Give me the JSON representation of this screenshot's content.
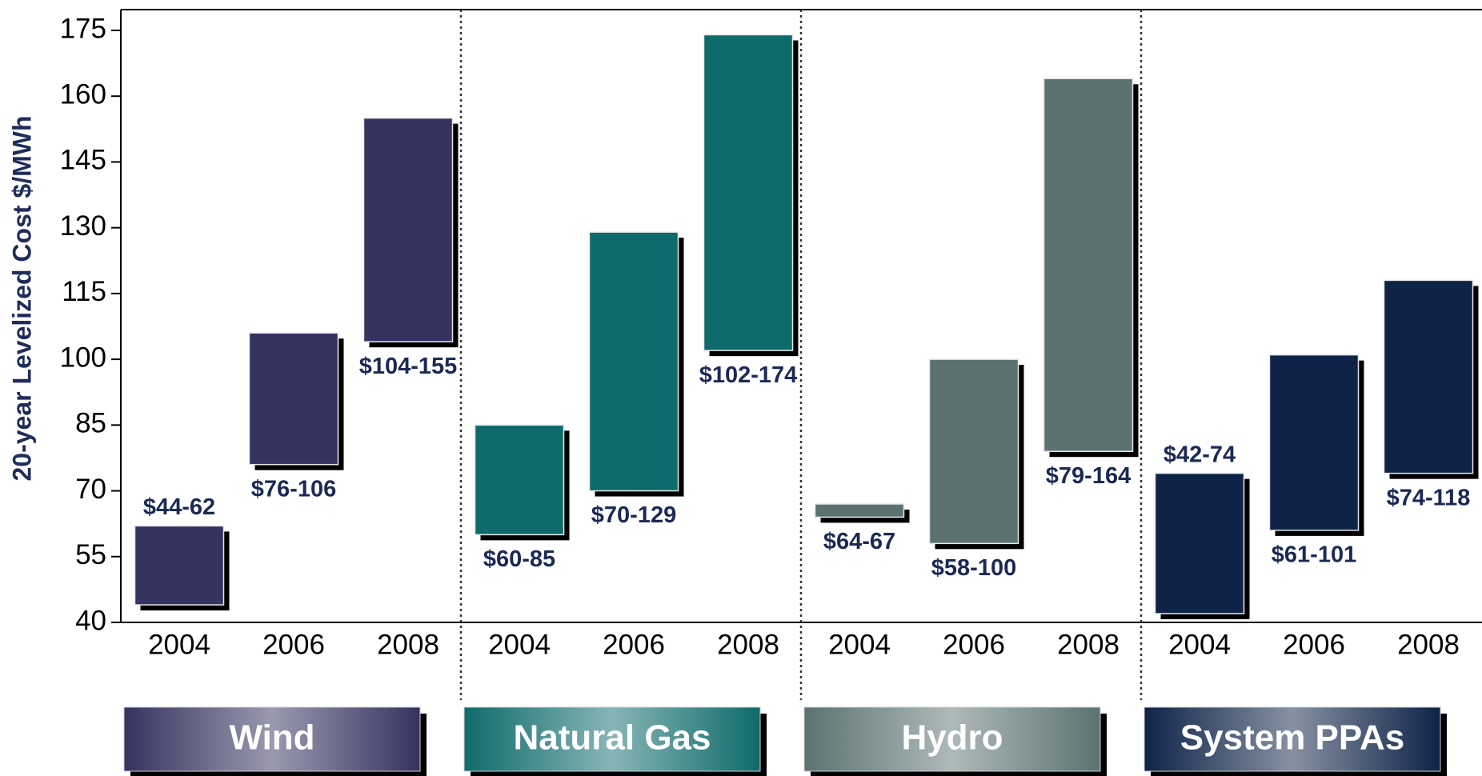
{
  "chart_data": {
    "type": "range_bar",
    "ylabel": "20-year Levelized Cost $/MWh",
    "ylim": [
      40,
      175
    ],
    "yticks": [
      40,
      55,
      70,
      85,
      100,
      115,
      130,
      145,
      160,
      175
    ],
    "groups": [
      {
        "name": "Wind",
        "color": "#35335f",
        "categories": [
          "2004",
          "2006",
          "2008"
        ],
        "low": [
          44,
          76,
          104
        ],
        "high": [
          62,
          106,
          155
        ],
        "value_labels": [
          "$44-62",
          "$76-106",
          "$104-155"
        ]
      },
      {
        "name": "Natural Gas",
        "color": "#0f6b6b",
        "categories": [
          "2004",
          "2006",
          "2008"
        ],
        "low": [
          60,
          70,
          102
        ],
        "high": [
          85,
          129,
          174
        ],
        "value_labels": [
          "$60-85",
          "$70-129",
          "$102-174"
        ]
      },
      {
        "name": "Hydro",
        "color": "#5c7272",
        "categories": [
          "2004",
          "2006",
          "2008"
        ],
        "low": [
          64,
          58,
          79
        ],
        "high": [
          67,
          100,
          164
        ],
        "value_labels": [
          "$64-67",
          "$58-100",
          "$79-164"
        ]
      },
      {
        "name": "System PPAs",
        "color": "#0e2347",
        "categories": [
          "2004",
          "2006",
          "2008"
        ],
        "low": [
          42,
          61,
          74
        ],
        "high": [
          74,
          101,
          118
        ],
        "value_labels": [
          "$42-74",
          "$61-101",
          "$74-118"
        ]
      }
    ]
  }
}
